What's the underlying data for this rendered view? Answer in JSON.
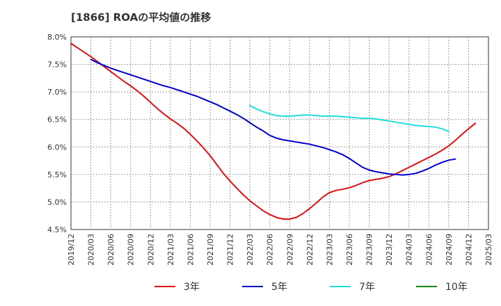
{
  "chart_data": {
    "type": "line",
    "title": "[1866]  ROAの平均値の推移",
    "xlabel": "",
    "ylabel": "",
    "ylim": [
      4.5,
      8.0
    ],
    "yticks": [
      "4.5%",
      "5.0%",
      "5.5%",
      "6.0%",
      "6.5%",
      "7.0%",
      "7.5%",
      "8.0%"
    ],
    "ytick_values": [
      4.5,
      5.0,
      5.5,
      6.0,
      6.5,
      7.0,
      7.5,
      8.0
    ],
    "xticks": [
      "2019/12",
      "2020/03",
      "2020/06",
      "2020/09",
      "2020/12",
      "2021/03",
      "2021/06",
      "2021/09",
      "2021/12",
      "2022/03",
      "2022/06",
      "2022/09",
      "2022/12",
      "2023/03",
      "2023/06",
      "2023/09",
      "2023/12",
      "2024/03",
      "2024/06",
      "2024/09",
      "2024/12",
      "2025/03"
    ],
    "grid": true,
    "legend_position": "bottom",
    "series": [
      {
        "name": "3年",
        "color": "#dd1111",
        "start_index": 0,
        "values": [
          7.88,
          7.8,
          7.72,
          7.64,
          7.55,
          7.46,
          7.37,
          7.28,
          7.19,
          7.11,
          7.02,
          6.92,
          6.81,
          6.7,
          6.6,
          6.51,
          6.43,
          6.34,
          6.23,
          6.11,
          5.98,
          5.84,
          5.68,
          5.52,
          5.38,
          5.25,
          5.13,
          5.02,
          4.93,
          4.84,
          4.77,
          4.72,
          4.69,
          4.69,
          4.72,
          4.79,
          4.88,
          4.98,
          5.09,
          5.17,
          5.21,
          5.23,
          5.26,
          5.3,
          5.35,
          5.39,
          5.41,
          5.43,
          5.46,
          5.51,
          5.57,
          5.63,
          5.69,
          5.75,
          5.81,
          5.87,
          5.94,
          6.02,
          6.12,
          6.23,
          6.33,
          6.43
        ]
      },
      {
        "name": "5年",
        "color": "#0000cc",
        "start_index": 3,
        "values": [
          7.59,
          7.53,
          7.48,
          7.43,
          7.39,
          7.35,
          7.31,
          7.27,
          7.23,
          7.19,
          7.15,
          7.11,
          7.08,
          7.04,
          7.0,
          6.96,
          6.92,
          6.87,
          6.82,
          6.77,
          6.71,
          6.65,
          6.59,
          6.52,
          6.44,
          6.36,
          6.29,
          6.21,
          6.16,
          6.13,
          6.11,
          6.09,
          6.07,
          6.05,
          6.02,
          5.99,
          5.95,
          5.91,
          5.86,
          5.79,
          5.71,
          5.63,
          5.58,
          5.55,
          5.53,
          5.51,
          5.5,
          5.49,
          5.5,
          5.52,
          5.56,
          5.61,
          5.67,
          5.72,
          5.76,
          5.78
        ]
      },
      {
        "name": "7年",
        "color": "#22dddd",
        "start_index": 27,
        "values": [
          6.75,
          6.69,
          6.64,
          6.6,
          6.57,
          6.56,
          6.56,
          6.57,
          6.58,
          6.58,
          6.57,
          6.56,
          6.56,
          6.56,
          6.55,
          6.54,
          6.53,
          6.52,
          6.52,
          6.51,
          6.49,
          6.47,
          6.45,
          6.43,
          6.41,
          6.39,
          6.38,
          6.37,
          6.36,
          6.33,
          6.28
        ]
      },
      {
        "name": "10年",
        "color": "#118811",
        "start_index": 0,
        "values": []
      }
    ]
  }
}
